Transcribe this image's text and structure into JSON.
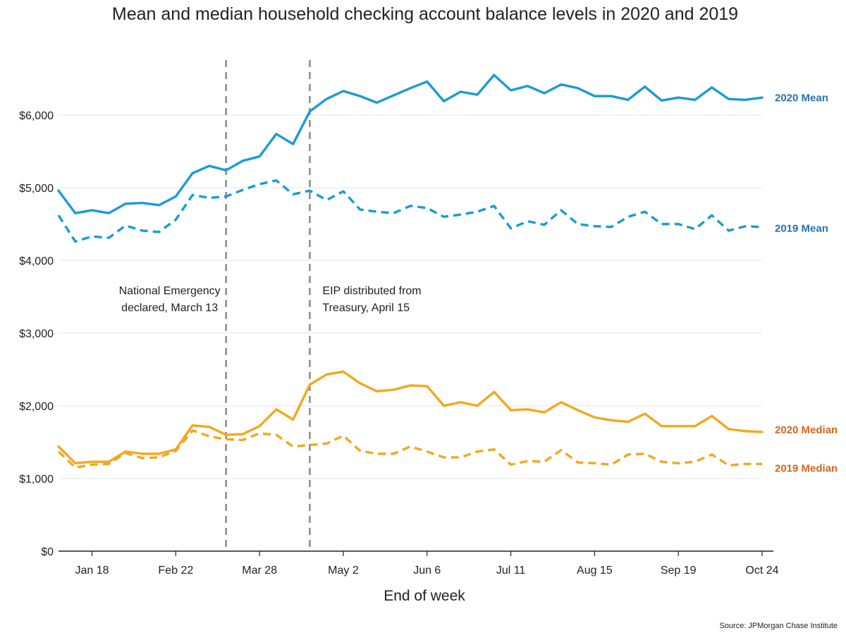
{
  "chart_data": {
    "type": "line",
    "title": "Mean and median household checking account balance levels in 2020 and 2019",
    "xlabel": "End of week",
    "ylabel": "",
    "ylim": [
      0,
      7000
    ],
    "grid": "horizontal",
    "yticks": [
      {
        "value": 0,
        "label": "$0"
      },
      {
        "value": 1000,
        "label": "$1,000"
      },
      {
        "value": 2000,
        "label": "$2,000"
      },
      {
        "value": 3000,
        "label": "$3,000"
      },
      {
        "value": 4000,
        "label": "$4,000"
      },
      {
        "value": 5000,
        "label": "$5,000"
      },
      {
        "value": 6000,
        "label": "$6,000"
      }
    ],
    "xticks": [
      {
        "index": 2,
        "label": "Jan 18"
      },
      {
        "index": 7,
        "label": "Feb 22"
      },
      {
        "index": 12,
        "label": "Mar 28"
      },
      {
        "index": 17,
        "label": "May 2"
      },
      {
        "index": 22,
        "label": "Jun 6"
      },
      {
        "index": 27,
        "label": "Jul 11"
      },
      {
        "index": 32,
        "label": "Aug 15"
      },
      {
        "index": 37,
        "label": "Sep 19"
      },
      {
        "index": 42,
        "label": "Oct 24"
      }
    ],
    "week_count": 43,
    "series": [
      {
        "name": "2020 Mean",
        "label": "2020 Mean",
        "color": "#1a9bd7",
        "label_color": "#2672b0",
        "dashed": false,
        "values": [
          4960,
          4650,
          4690,
          4650,
          4780,
          4790,
          4760,
          4880,
          5200,
          5300,
          5240,
          5370,
          5430,
          5740,
          5600,
          6050,
          6220,
          6330,
          6260,
          6170,
          6270,
          6370,
          6460,
          6190,
          6320,
          6280,
          6550,
          6340,
          6400,
          6300,
          6420,
          6370,
          6260,
          6260,
          6210,
          6390,
          6200,
          6240,
          6210,
          6380,
          6220,
          6210,
          6240
        ]
      },
      {
        "name": "2019 Mean",
        "label": "2019 Mean",
        "color": "#1a9bd7",
        "label_color": "#2672b0",
        "dashed": true,
        "values": [
          4620,
          4260,
          4330,
          4310,
          4480,
          4410,
          4390,
          4560,
          4900,
          4860,
          4880,
          4970,
          5050,
          5100,
          4910,
          4960,
          4830,
          4950,
          4700,
          4670,
          4650,
          4750,
          4720,
          4600,
          4630,
          4670,
          4750,
          4440,
          4540,
          4490,
          4690,
          4500,
          4470,
          4460,
          4600,
          4670,
          4500,
          4500,
          4430,
          4620,
          4410,
          4470,
          4460
        ]
      },
      {
        "name": "2020 Median",
        "label": "2020 Median",
        "color": "#f5a71b",
        "label_color": "#d9641c",
        "dashed": false,
        "values": [
          1440,
          1210,
          1230,
          1230,
          1370,
          1340,
          1340,
          1400,
          1730,
          1710,
          1600,
          1610,
          1720,
          1950,
          1810,
          2290,
          2430,
          2470,
          2310,
          2200,
          2220,
          2280,
          2270,
          2000,
          2050,
          2000,
          2190,
          1940,
          1950,
          1910,
          2050,
          1940,
          1840,
          1800,
          1780,
          1890,
          1720,
          1720,
          1720,
          1860,
          1680,
          1650,
          1640
        ]
      },
      {
        "name": "2019 Median",
        "label": "2019 Median",
        "color": "#f5a71b",
        "label_color": "#d9641c",
        "dashed": true,
        "values": [
          1370,
          1150,
          1190,
          1200,
          1350,
          1280,
          1290,
          1380,
          1660,
          1580,
          1540,
          1530,
          1620,
          1600,
          1440,
          1460,
          1480,
          1590,
          1380,
          1340,
          1340,
          1440,
          1370,
          1290,
          1290,
          1370,
          1400,
          1190,
          1240,
          1230,
          1390,
          1220,
          1210,
          1190,
          1330,
          1340,
          1230,
          1210,
          1230,
          1330,
          1180,
          1200,
          1200
        ]
      }
    ],
    "annotations": [
      {
        "at_week": 10,
        "lines": [
          "National Emergency",
          "declared, March 13"
        ],
        "side": "left"
      },
      {
        "at_week": 15,
        "lines": [
          "EIP distributed from",
          "Treasury, April 15"
        ],
        "side": "right"
      }
    ],
    "source": "Source: JPMorgan Chase Institute"
  }
}
